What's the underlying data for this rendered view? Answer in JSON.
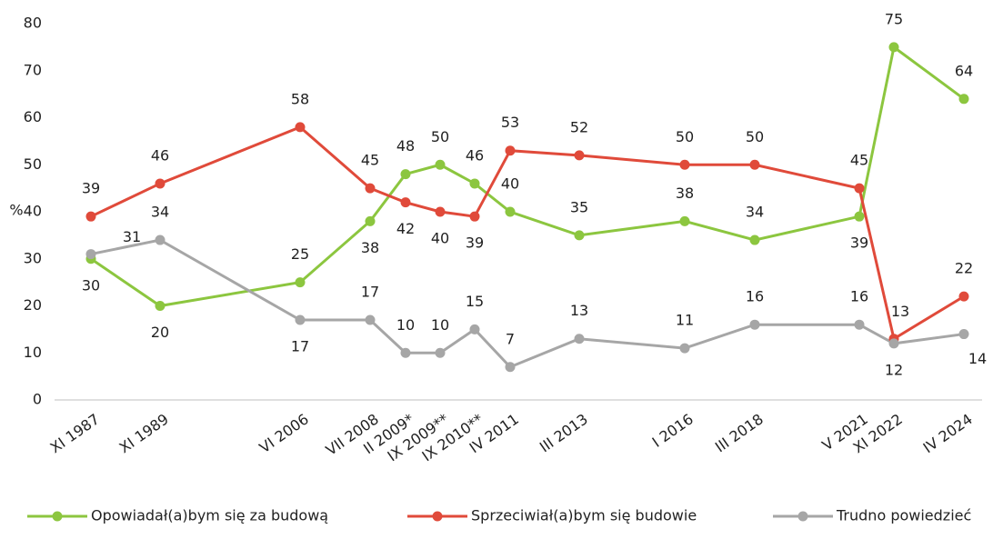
{
  "chart_data": {
    "type": "line",
    "y_label": "%",
    "categories": [
      "XI 1987",
      "XI 1989",
      "VI 2006",
      "VII 2008",
      "II 2009*",
      "IX 2009**",
      "IX 2010**",
      "IV 2011",
      "III 2013",
      "I 2016",
      "III 2018",
      "V 2021",
      "XI 2022",
      "IV 2024"
    ],
    "series": [
      {
        "name": "Opowiadał(a)bym się za budową",
        "color": "#8cc63f",
        "values": [
          30,
          20,
          25,
          38,
          48,
          50,
          46,
          40,
          35,
          38,
          34,
          39,
          75,
          64
        ]
      },
      {
        "name": "Sprzeciwiał(a)bym się budowie",
        "color": "#e04a3a",
        "values": [
          39,
          46,
          58,
          45,
          42,
          40,
          39,
          53,
          52,
          50,
          50,
          45,
          13,
          22
        ]
      },
      {
        "name": "Trudno powiedzieć",
        "color": "#a6a6a6",
        "values": [
          31,
          34,
          17,
          17,
          10,
          10,
          15,
          7,
          13,
          11,
          16,
          16,
          12,
          14
        ]
      }
    ],
    "ylim": [
      0,
      80
    ],
    "yticks": [
      0,
      10,
      20,
      30,
      40,
      50,
      60,
      70,
      80
    ],
    "legend": "bottom"
  }
}
